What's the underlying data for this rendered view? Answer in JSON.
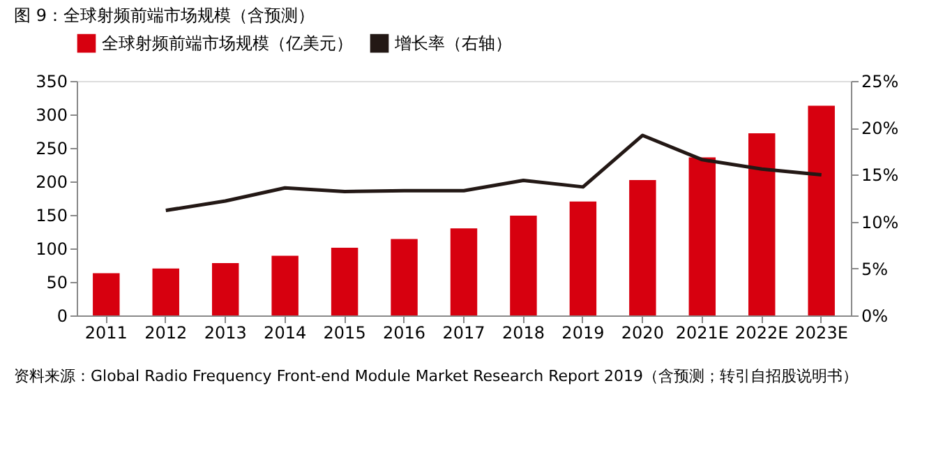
{
  "chart_data": {
    "type": "bar",
    "title": "图 9：全球射频前端市场规模（含预测）",
    "categories": [
      "2011",
      "2012",
      "2013",
      "2014",
      "2015",
      "2016",
      "2017",
      "2018",
      "2019",
      "2020",
      "2021E",
      "2022E",
      "2023E"
    ],
    "series": [
      {
        "name": "全球射频前端市场规模（亿美元）",
        "color": "#d7000f",
        "values": [
          63,
          70,
          78,
          89,
          101,
          114,
          130,
          149,
          170,
          202,
          236,
          272,
          313
        ]
      },
      {
        "name": "增长率（右轴）",
        "type": "line",
        "axis": "y2",
        "color": "#231815",
        "values": [
          null,
          11.2,
          12.2,
          13.6,
          13.2,
          13.3,
          13.3,
          14.4,
          13.7,
          19.2,
          16.6,
          15.6,
          15.0
        ]
      }
    ],
    "ylim": [
      0,
      350
    ],
    "yticks": [
      0,
      50,
      100,
      150,
      200,
      250,
      300,
      350
    ],
    "y2lim": [
      0,
      25
    ],
    "y2ticks": [
      {
        "value": 0,
        "label": "0%"
      },
      {
        "value": 5,
        "label": "5%"
      },
      {
        "value": 10,
        "label": "10%"
      },
      {
        "value": 15,
        "label": "15%"
      },
      {
        "value": 20,
        "label": "20%"
      },
      {
        "value": 25,
        "label": "25%"
      }
    ],
    "grid": false,
    "legend": "top",
    "marker": "none",
    "line_style": "solid",
    "annotations": [
      "资料来源：Global Radio Frequency Front-end Module Market Research Report 2019（含预测；转引自招股说明书）"
    ]
  }
}
